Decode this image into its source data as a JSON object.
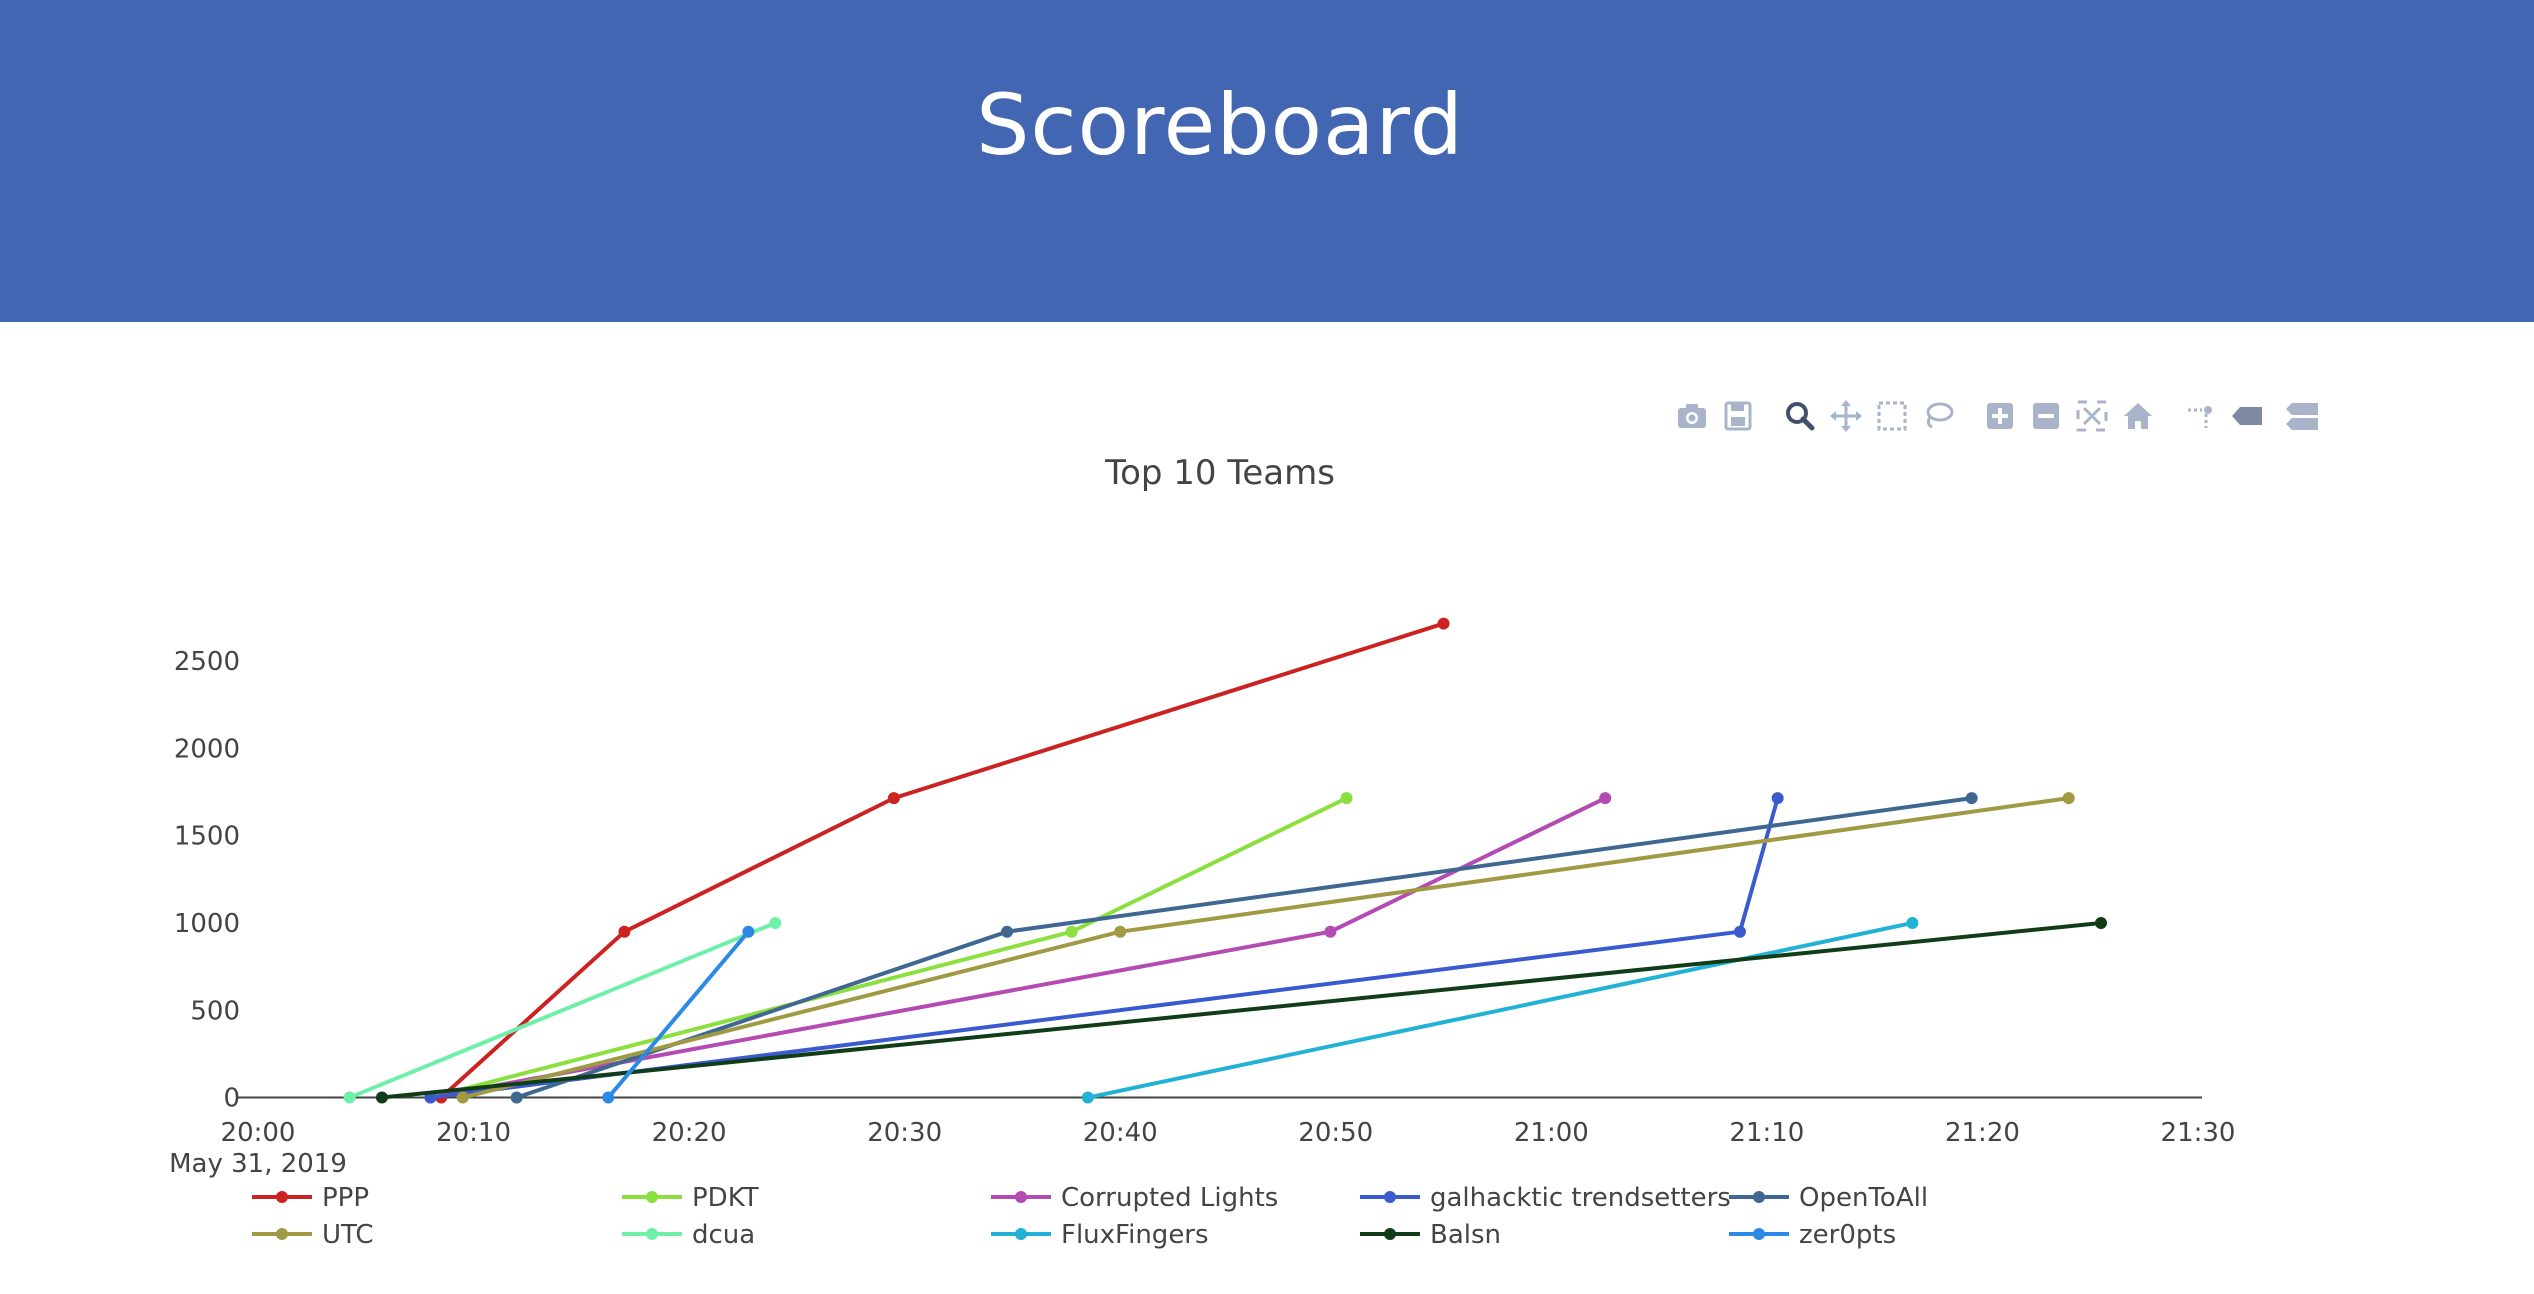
{
  "header": {
    "title": "Scoreboard"
  },
  "toolbar": {
    "buttons": [
      "camera-icon",
      "save-icon",
      "zoom-icon",
      "pan-icon",
      "box-select-icon",
      "lasso-select-icon",
      "zoom-in-icon",
      "zoom-out-icon",
      "autoscale-icon",
      "reset-axes-icon",
      "spike-lines-icon",
      "hover-closest-icon",
      "hover-compare-icon"
    ],
    "icon_color": "#a9b4cb",
    "active_color": "#44506b"
  },
  "chart_data": {
    "type": "line",
    "title": "Top 10 Teams",
    "xlabel": "",
    "ylabel": "",
    "x_start": "20:00",
    "x_date_label": "May 31, 2019",
    "x_ticks": [
      "20:00",
      "20:10",
      "20:20",
      "20:30",
      "20:40",
      "20:50",
      "21:00",
      "21:10",
      "21:20",
      "21:30"
    ],
    "y_ticks": [
      0,
      500,
      1000,
      1500,
      2000,
      2500
    ],
    "xlim": [
      "20:00",
      "21:30"
    ],
    "ylim": [
      -100,
      2850
    ],
    "grid": false,
    "legend_position": "bottom",
    "series": [
      {
        "name": "PPP",
        "color": "#cc2222",
        "x": [
          "20:08:30",
          "20:17:00",
          "20:29:30",
          "20:55:00"
        ],
        "y": [
          0,
          950,
          1715,
          2715
        ]
      },
      {
        "name": "PDKT",
        "color": "#8be03f",
        "x": [
          "20:08:00",
          "20:37:45",
          "20:50:30"
        ],
        "y": [
          0,
          950,
          1715
        ]
      },
      {
        "name": "Corrupted Lights",
        "color": "#b34bb3",
        "x": [
          "20:08:00",
          "20:49:45",
          "21:02:30"
        ],
        "y": [
          0,
          950,
          1715
        ]
      },
      {
        "name": "galhacktic trendsetters",
        "color": "#3a5bd0",
        "x": [
          "20:08:00",
          "21:08:45",
          "21:10:30"
        ],
        "y": [
          0,
          950,
          1715
        ]
      },
      {
        "name": "OpenToAll",
        "color": "#3e6791",
        "x": [
          "20:12:00",
          "20:34:45",
          "21:19:30"
        ],
        "y": [
          0,
          950,
          1715
        ]
      },
      {
        "name": "UTC",
        "color": "#a09a45",
        "x": [
          "20:09:30",
          "20:40:00",
          "21:24:00"
        ],
        "y": [
          0,
          950,
          1715
        ]
      },
      {
        "name": "dcua",
        "color": "#6ff0a8",
        "x": [
          "20:04:15",
          "20:24:00"
        ],
        "y": [
          0,
          1000
        ]
      },
      {
        "name": "FluxFingers",
        "color": "#22b2d6",
        "x": [
          "20:38:30",
          "21:16:45"
        ],
        "y": [
          0,
          1000
        ]
      },
      {
        "name": "Balsn",
        "color": "#103d18",
        "x": [
          "20:05:45",
          "21:25:30"
        ],
        "y": [
          0,
          1000
        ]
      },
      {
        "name": "zer0pts",
        "color": "#2c8ae6",
        "x": [
          "20:16:15",
          "20:22:45"
        ],
        "y": [
          0,
          950
        ]
      }
    ]
  }
}
